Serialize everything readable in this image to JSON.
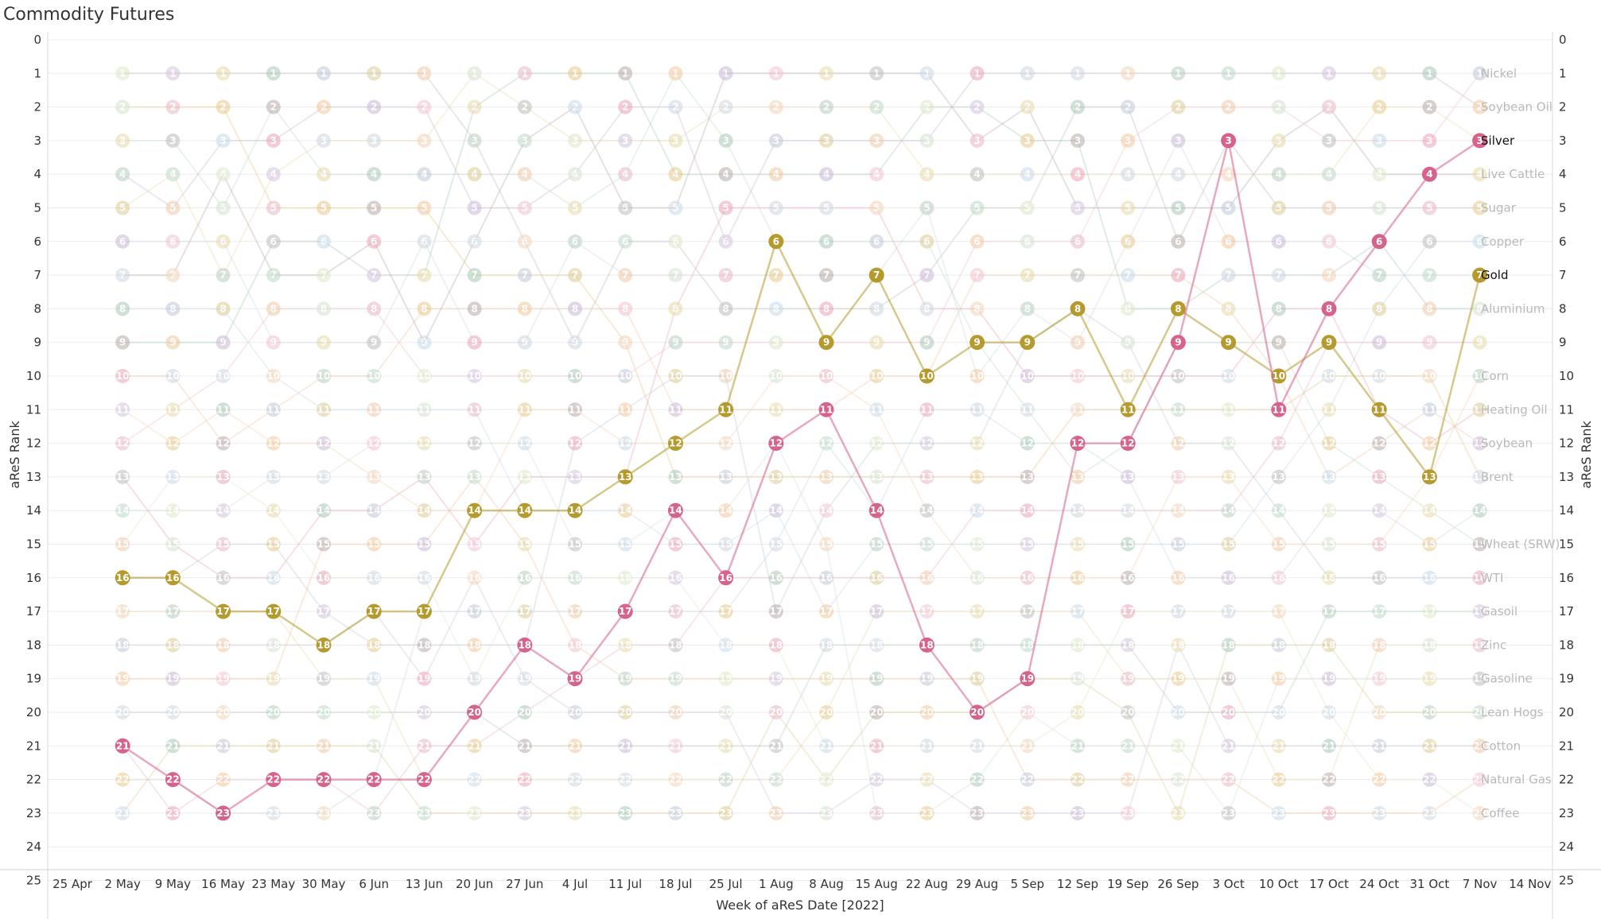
{
  "page": {
    "title": "Commodity Futures"
  },
  "chart_data": {
    "type": "line",
    "title": "Commodity Futures",
    "xlabel": "Week of aReS Date [2022]",
    "ylabel": "aReS Rank",
    "y_reversed": true,
    "ylim": [
      0,
      25
    ],
    "yticks": [
      0,
      1,
      2,
      3,
      4,
      5,
      6,
      7,
      8,
      9,
      10,
      11,
      12,
      13,
      14,
      15,
      16,
      17,
      18,
      19,
      20,
      21,
      22,
      23,
      24,
      25
    ],
    "x": [
      "25 Apr",
      "2 May",
      "9 May",
      "16 May",
      "23 May",
      "30 May",
      "6 Jun",
      "13 Jun",
      "20 Jun",
      "27 Jun",
      "4 Jul",
      "11 Jul",
      "18 Jul",
      "25 Jul",
      "1 Aug",
      "8 Aug",
      "15 Aug",
      "22 Aug",
      "29 Aug",
      "5 Sep",
      "12 Sep",
      "19 Sep",
      "26 Sep",
      "3 Oct",
      "10 Oct",
      "17 Oct",
      "24 Oct",
      "31 Oct",
      "7 Nov",
      "14 Nov"
    ],
    "grid": "horizontal",
    "legend": "right (labels at line ends)",
    "highlighted_series": [
      {
        "name": "Gold",
        "color": "#B59A2E",
        "values": [
          null,
          16,
          16,
          17,
          17,
          18,
          17,
          17,
          14,
          14,
          14,
          13,
          12,
          11,
          6,
          9,
          7,
          10,
          9,
          9,
          8,
          11,
          8,
          9,
          10,
          9,
          11,
          13,
          7,
          null
        ]
      },
      {
        "name": "Silver",
        "color": "#D6638C",
        "values": [
          null,
          21,
          22,
          23,
          22,
          22,
          22,
          22,
          20,
          18,
          19,
          17,
          14,
          16,
          12,
          11,
          14,
          18,
          20,
          19,
          12,
          12,
          9,
          3,
          11,
          8,
          6,
          4,
          3,
          null
        ]
      }
    ],
    "background_series": [
      {
        "name": "Nickel",
        "rank_at_end": 1,
        "color": "#BDBDBD"
      },
      {
        "name": "Soybean Oil",
        "rank_at_end": 2,
        "color": "#C9B8D6"
      },
      {
        "name": "Silver",
        "rank_at_end": 3,
        "color": "#D6638C"
      },
      {
        "name": "Live Cattle",
        "rank_at_end": 4,
        "color": "#E9A3B5"
      },
      {
        "name": "Sugar",
        "rank_at_end": 5,
        "color": "#B9A9A9"
      },
      {
        "name": "Copper",
        "rank_at_end": 6,
        "color": "#EFC9A8"
      },
      {
        "name": "Gold",
        "rank_at_end": 7,
        "color": "#B59A2E"
      },
      {
        "name": "Aluminium",
        "rank_at_end": 8,
        "color": "#9FB0C0"
      },
      {
        "name": "Corn",
        "rank_at_end": 10,
        "color": "#BFD9B3"
      },
      {
        "name": "Heating Oil",
        "rank_at_end": 11,
        "color": "#A9C8C0"
      },
      {
        "name": "Soybean",
        "rank_at_end": 12,
        "color": "#F2C2CF"
      },
      {
        "name": "Brent",
        "rank_at_end": 13,
        "color": "#C9D5E3"
      },
      {
        "name": "Wheat (SRW)",
        "rank_at_end": 15,
        "color": "#9EB8CC"
      },
      {
        "name": "WTI",
        "rank_at_end": 16,
        "color": "#BFCAD6"
      },
      {
        "name": "Gasoil",
        "rank_at_end": 17,
        "color": "#DCCB94"
      },
      {
        "name": "Zinc",
        "rank_at_end": 18,
        "color": "#F3C9A0"
      },
      {
        "name": "Gasoline",
        "rank_at_end": 19,
        "color": "#E7D9A8"
      },
      {
        "name": "Lean Hogs",
        "rank_at_end": 20,
        "color": "#E59BAA"
      },
      {
        "name": "Cotton",
        "rank_at_end": 21,
        "color": "#C9DDB0"
      },
      {
        "name": "Natural Gas",
        "rank_at_end": 22,
        "color": "#A7A7B2"
      },
      {
        "name": "Coffee",
        "rank_at_end": 23,
        "color": "#F1C79A"
      }
    ],
    "end_labels": [
      {
        "rank": 1,
        "text": "Nickel"
      },
      {
        "rank": 2,
        "text": "Soybean Oil"
      },
      {
        "rank": 3,
        "text": "Silver",
        "highlight": true
      },
      {
        "rank": 4,
        "text": "Live Cattle"
      },
      {
        "rank": 5,
        "text": "Sugar"
      },
      {
        "rank": 6,
        "text": "Copper"
      },
      {
        "rank": 7,
        "text": "Gold",
        "highlight": true
      },
      {
        "rank": 8,
        "text": "Aluminium"
      },
      {
        "rank": 10,
        "text": "Corn"
      },
      {
        "rank": 11,
        "text": "Heating Oil"
      },
      {
        "rank": 12,
        "text": "Soybean"
      },
      {
        "rank": 13,
        "text": "Brent"
      },
      {
        "rank": 15,
        "text": "Wheat (SRW)"
      },
      {
        "rank": 16,
        "text": "WTI"
      },
      {
        "rank": 17,
        "text": "Gasoil"
      },
      {
        "rank": 18,
        "text": "Zinc"
      },
      {
        "rank": 19,
        "text": "Gasoline"
      },
      {
        "rank": 20,
        "text": "Lean Hogs"
      },
      {
        "rank": 21,
        "text": "Cotton"
      },
      {
        "rank": 22,
        "text": "Natural Gas"
      },
      {
        "rank": 23,
        "text": "Coffee"
      }
    ],
    "background_palette": [
      "#BDBDBD",
      "#E8D9A8",
      "#C9B8D6",
      "#BFD9C7",
      "#E6C98A",
      "#CFD8E3",
      "#EFC9A8",
      "#C7D9E8",
      "#A9C8B5",
      "#F2C2CF",
      "#DCE8C8",
      "#B9A9A9",
      "#F3D3B8",
      "#D5E3D0",
      "#E9A3B5",
      "#C0C8D8",
      "#E7D9A8",
      "#D3C3E0",
      "#F1C79A",
      "#B8CFC0",
      "#E8B7C5",
      "#CCD6DF",
      "#DCCB94"
    ]
  }
}
